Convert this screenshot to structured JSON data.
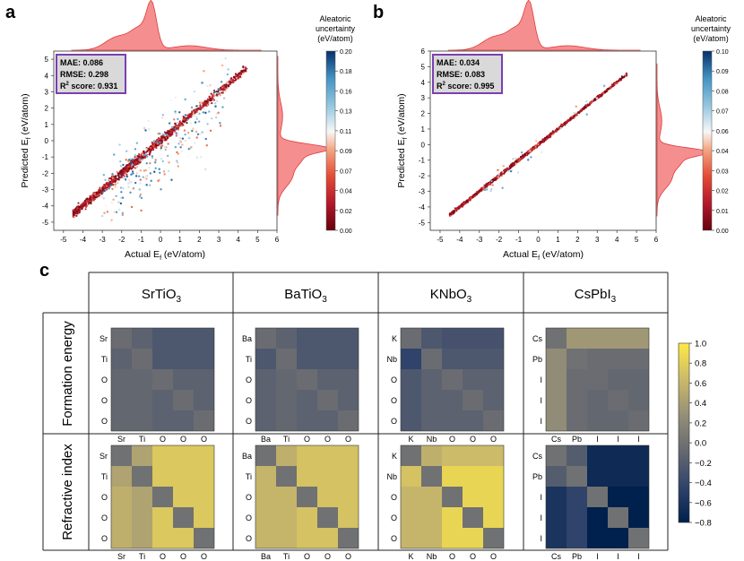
{
  "panel_labels": {
    "a": "a",
    "b": "b",
    "c": "c"
  },
  "colors": {
    "kde_fill": "#f26a6a",
    "kde_stroke": "#e03a3a",
    "box_border": "#7b3fb0",
    "box_bg": "#d9d9d9"
  },
  "chart_data": [
    {
      "id": "a",
      "type": "scatter",
      "xlabel": "Actual E",
      "xlabel_sub": "f",
      "xlabel_unit": " (eV/atom)",
      "ylabel": "Predicted E",
      "ylabel_sub": "f",
      "ylabel_unit": " (eV/atom)",
      "xlim": [
        -5.5,
        6
      ],
      "ylim": [
        -5.5,
        5.5
      ],
      "xticks": [
        -5,
        -4,
        -3,
        -2,
        -1,
        0,
        1,
        2,
        3,
        4,
        5,
        6
      ],
      "yticks": [
        -5,
        -4,
        -3,
        -2,
        -1,
        0,
        1,
        2,
        3,
        4,
        5
      ],
      "metrics": {
        "mae": "MAE: 0.086",
        "rmse": "RMSE: 0.298",
        "r2_prefix": "R",
        "r2_sup": "2",
        "r2_suffix": " score: 0.931"
      },
      "colorbar": {
        "title": [
          "Aleatoric",
          "uncertainty",
          "(eV/atom)"
        ],
        "ticks": [
          "0.00",
          "0.02",
          "0.04",
          "0.07",
          "0.09",
          "0.11",
          "0.13",
          "0.16",
          "0.18",
          "0.20"
        ]
      },
      "spread": 0.32,
      "outliers": 260
    },
    {
      "id": "b",
      "type": "scatter",
      "xlabel": "Actual E",
      "xlabel_sub": "f",
      "xlabel_unit": " (eV/atom)",
      "ylabel": "Predicted E",
      "ylabel_sub": "f",
      "ylabel_unit": " (eV/atom)",
      "xlim": [
        -5.5,
        6
      ],
      "ylim": [
        -5.5,
        6
      ],
      "xticks": [
        -5,
        -4,
        -3,
        -2,
        -1,
        0,
        1,
        2,
        3,
        4,
        5,
        6
      ],
      "yticks": [
        -5,
        -4,
        -3,
        -2,
        -1,
        0,
        1,
        2,
        3,
        4,
        5,
        6
      ],
      "metrics": {
        "mae": "MAE: 0.034",
        "rmse": "RMSE: 0.083",
        "r2_prefix": "R",
        "r2_sup": "2",
        "r2_suffix": " score: 0.995"
      },
      "colorbar": {
        "title": [
          "Aleatoric",
          "uncertainty",
          "(eV/atom)"
        ],
        "ticks": [
          "0.00",
          "0.01",
          "0.02",
          "0.03",
          "0.04",
          "0.06",
          "0.07",
          "0.08",
          "0.09",
          "0.10"
        ]
      },
      "spread": 0.12,
      "outliers": 40
    },
    {
      "id": "c",
      "type": "heatmap",
      "row_headers": [
        "Formation energy",
        "Refractive index"
      ],
      "compounds": [
        {
          "name": "SrTiO",
          "sub": "3",
          "atoms": [
            "Sr",
            "Ti",
            "O",
            "O",
            "O"
          ]
        },
        {
          "name": "BaTiO",
          "sub": "3",
          "atoms": [
            "Ba",
            "Ti",
            "O",
            "O",
            "O"
          ]
        },
        {
          "name": "KNbO",
          "sub": "3",
          "atoms": [
            "K",
            "Nb",
            "O",
            "O",
            "O"
          ]
        },
        {
          "name": "CsPbI",
          "sub": "3",
          "atoms": [
            "Cs",
            "Pb",
            "I",
            "I",
            "I"
          ]
        }
      ],
      "matrices": [
        [
          [
            [
              -0.05,
              -0.15,
              -0.25,
              -0.25,
              -0.25
            ],
            [
              -0.15,
              -0.05,
              -0.25,
              -0.25,
              -0.25
            ],
            [
              -0.1,
              -0.1,
              -0.05,
              -0.15,
              -0.15
            ],
            [
              -0.1,
              -0.1,
              -0.15,
              -0.05,
              -0.15
            ],
            [
              -0.1,
              -0.1,
              -0.15,
              -0.15,
              -0.05
            ]
          ],
          [
            [
              -0.05,
              -0.15,
              -0.25,
              -0.25,
              -0.25
            ],
            [
              -0.25,
              -0.05,
              -0.25,
              -0.25,
              -0.25
            ],
            [
              -0.15,
              -0.1,
              -0.05,
              -0.15,
              -0.15
            ],
            [
              -0.15,
              -0.1,
              -0.15,
              -0.05,
              -0.15
            ],
            [
              -0.15,
              -0.1,
              -0.15,
              -0.15,
              -0.05
            ]
          ],
          [
            [
              -0.05,
              -0.25,
              -0.3,
              -0.3,
              -0.3
            ],
            [
              -0.45,
              -0.05,
              -0.25,
              -0.25,
              -0.25
            ],
            [
              -0.25,
              -0.15,
              -0.05,
              -0.15,
              -0.15
            ],
            [
              -0.25,
              -0.15,
              -0.15,
              -0.05,
              -0.15
            ],
            [
              -0.25,
              -0.15,
              -0.15,
              -0.15,
              -0.05
            ]
          ],
          [
            [
              0.0,
              0.35,
              0.35,
              0.35,
              0.35
            ],
            [
              0.25,
              0.0,
              -0.05,
              -0.05,
              -0.05
            ],
            [
              0.25,
              -0.05,
              -0.05,
              -0.1,
              -0.1
            ],
            [
              0.25,
              -0.05,
              -0.1,
              -0.05,
              -0.1
            ],
            [
              0.25,
              -0.05,
              -0.1,
              -0.1,
              -0.05
            ]
          ]
        ],
        [
          [
            [
              0.0,
              0.45,
              0.75,
              0.75,
              0.75
            ],
            [
              0.45,
              0.0,
              0.75,
              0.75,
              0.75
            ],
            [
              0.55,
              0.45,
              0.0,
              0.75,
              0.75
            ],
            [
              0.55,
              0.45,
              0.75,
              0.0,
              0.75
            ],
            [
              0.55,
              0.45,
              0.75,
              0.75,
              0.0
            ]
          ],
          [
            [
              0.0,
              0.55,
              0.7,
              0.7,
              0.7
            ],
            [
              0.6,
              0.0,
              0.7,
              0.7,
              0.7
            ],
            [
              0.6,
              0.6,
              0.0,
              0.7,
              0.7
            ],
            [
              0.6,
              0.6,
              0.7,
              0.0,
              0.7
            ],
            [
              0.6,
              0.6,
              0.7,
              0.7,
              0.0
            ]
          ],
          [
            [
              0.0,
              0.55,
              0.65,
              0.65,
              0.65
            ],
            [
              0.7,
              0.0,
              0.85,
              0.85,
              0.85
            ],
            [
              0.6,
              0.6,
              0.0,
              0.85,
              0.85
            ],
            [
              0.6,
              0.6,
              0.85,
              0.0,
              0.85
            ],
            [
              0.6,
              0.6,
              0.85,
              0.85,
              0.0
            ]
          ],
          [
            [
              0.0,
              -0.2,
              -0.7,
              -0.7,
              -0.7
            ],
            [
              -0.2,
              0.0,
              -0.7,
              -0.7,
              -0.7
            ],
            [
              -0.6,
              -0.45,
              0.0,
              -0.85,
              -0.85
            ],
            [
              -0.6,
              -0.45,
              -0.85,
              0.0,
              -0.85
            ],
            [
              -0.6,
              -0.45,
              -0.85,
              -0.85,
              0.0
            ]
          ]
        ]
      ],
      "colorbar": {
        "vmin": -0.8,
        "vmax": 1.0,
        "ticks": [
          "1.0",
          "0.8",
          "0.6",
          "0.4",
          "0.2",
          "0.0",
          "−0.2",
          "−0.4",
          "−0.6",
          "−0.8"
        ]
      }
    }
  ]
}
